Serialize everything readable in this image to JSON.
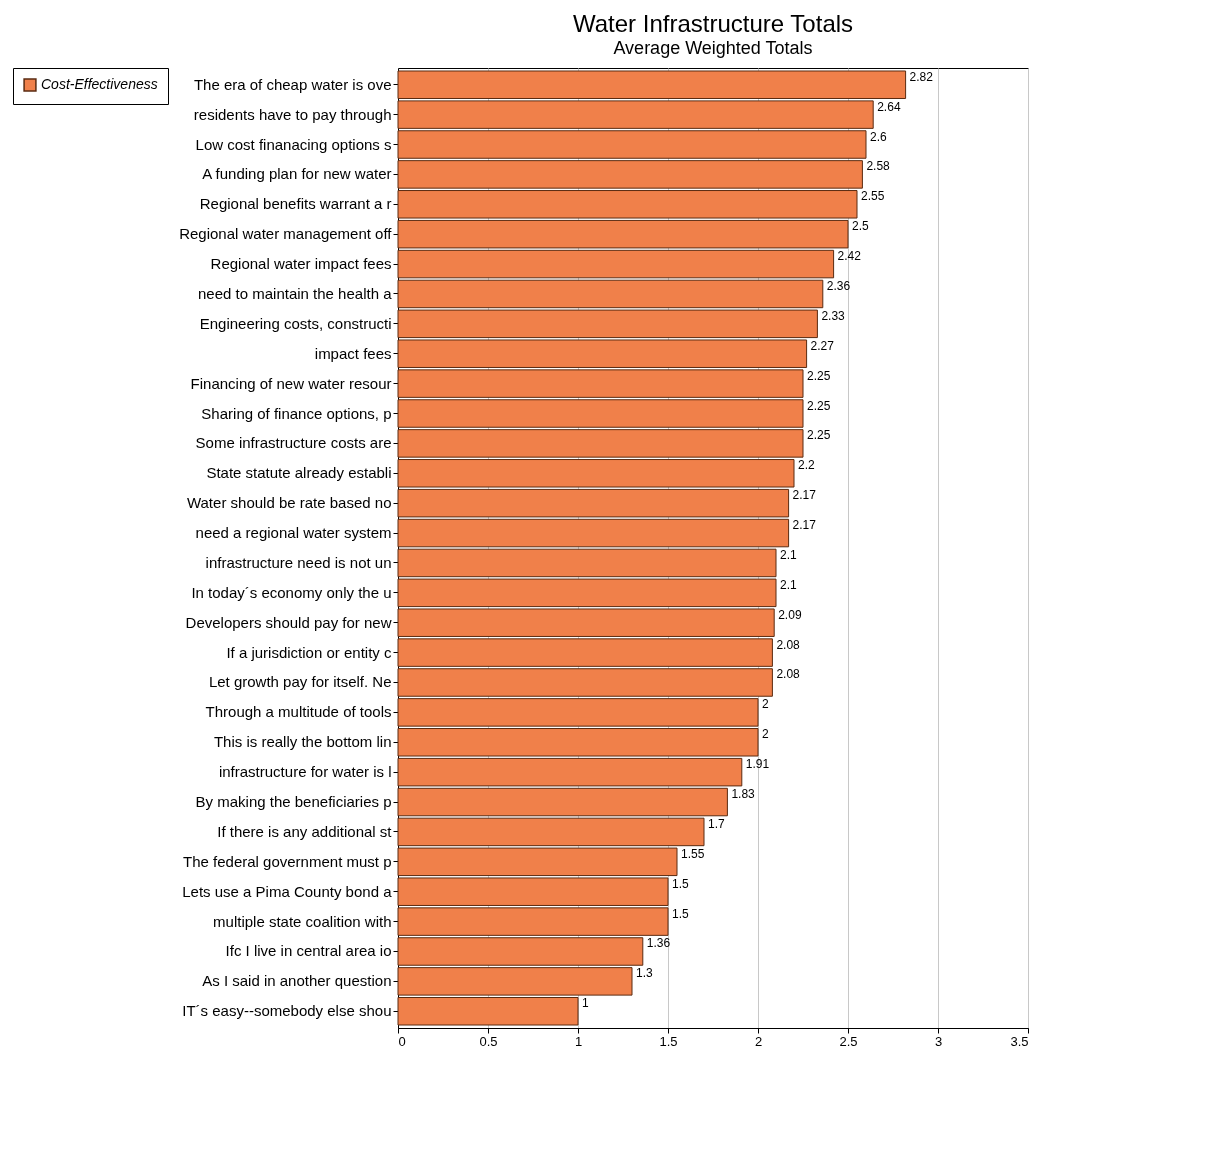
{
  "chart_data": {
    "type": "bar",
    "orientation": "horizontal",
    "title": "Water Infrastructure Totals",
    "subtitle": "Average Weighted Totals",
    "categories": [
      "The era of cheap water is ove",
      "residents have to pay through",
      "Low cost finanacing options s",
      "A funding plan for new water ",
      "Regional benefits warrant a r",
      "Regional water management off",
      "Regional water impact fees",
      "need to maintain the health a",
      "Engineering costs, constructi",
      "impact fees",
      "Financing of new water resour",
      "Sharing of finance options, p",
      "Some infrastructure costs are",
      "State statute already establi",
      "Water should be rate based no",
      "need a regional water system ",
      "infrastructure need is not un",
      "In today´s economy only the u",
      "Developers should pay for new",
      "If a jurisdiction or entity c",
      "Let growth pay for itself. Ne",
      "Through a multitude of tools ",
      "This is really the bottom lin",
      "infrastructure for water is l",
      "By making the beneficiaries p",
      "If there is any additional st",
      "The federal government must p",
      "Lets use a Pima County bond a",
      "multiple state coalition with",
      "Ifc I live in central area io",
      "As I said in another question",
      "IT´s easy--somebody else shou"
    ],
    "series": [
      {
        "name": "Cost-Effectiveness",
        "color": "#f0804a",
        "values": [
          2.82,
          2.64,
          2.6,
          2.58,
          2.55,
          2.5,
          2.42,
          2.36,
          2.33,
          2.27,
          2.25,
          2.25,
          2.25,
          2.2,
          2.17,
          2.17,
          2.1,
          2.1,
          2.09,
          2.08,
          2.08,
          2,
          2,
          1.91,
          1.83,
          1.7,
          1.55,
          1.5,
          1.5,
          1.36,
          1.3,
          1
        ]
      }
    ],
    "xlim": [
      0,
      3.5
    ],
    "xticks": [
      0,
      0.5,
      1,
      1.5,
      2,
      2.5,
      3,
      3.5
    ],
    "grid": "x",
    "legend": "top left",
    "data_labels": true
  }
}
